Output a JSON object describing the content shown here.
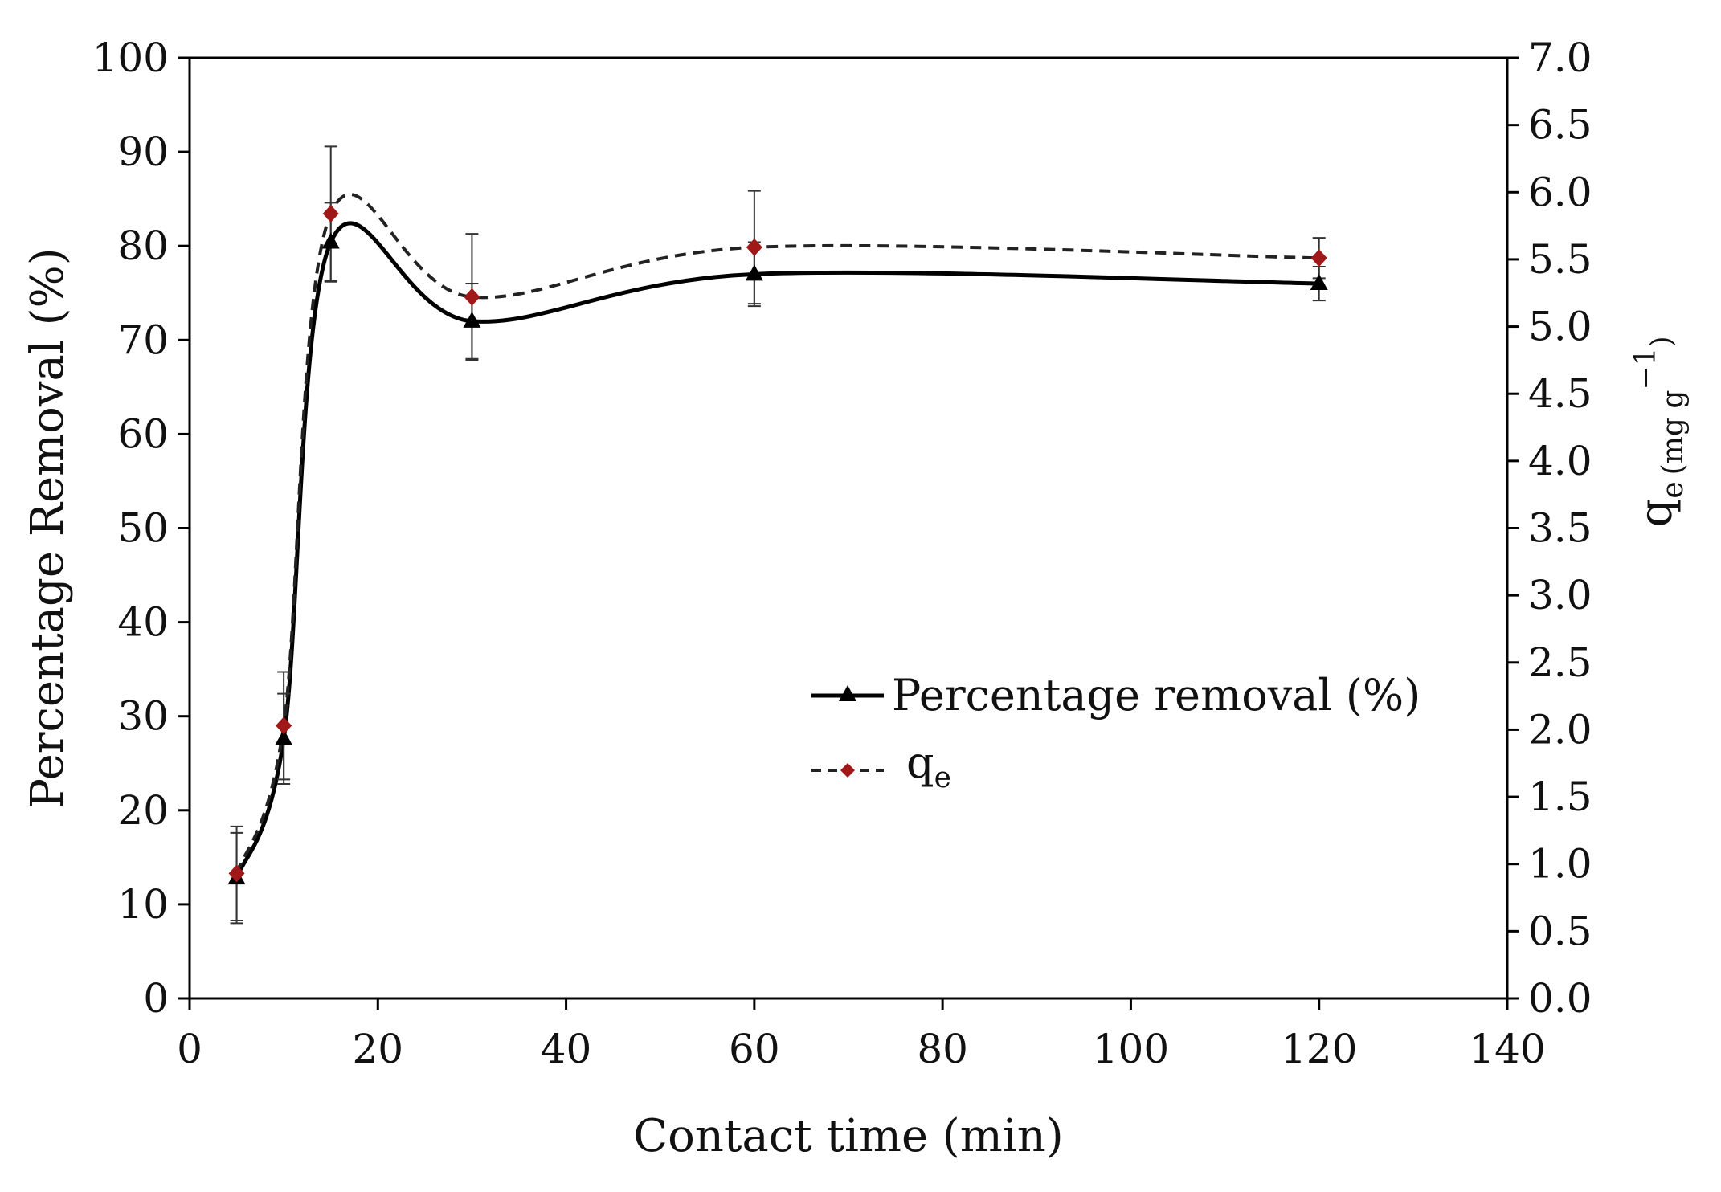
{
  "chart_data": {
    "type": "line",
    "title": "",
    "xlabel": "Contact time (min)",
    "ylabel": "Percentage  Removal  (%)",
    "y2label": {
      "main": "q",
      "sub": "e",
      "unit": "(mg g",
      "sup": "−1",
      "close": ")"
    },
    "xlim": [
      0,
      140
    ],
    "ylim": [
      0,
      100
    ],
    "y2lim": [
      0.0,
      7.0
    ],
    "xticks": [
      "0",
      "20",
      "40",
      "60",
      "80",
      "100",
      "120",
      "140"
    ],
    "yticks": [
      "0",
      "10",
      "20",
      "30",
      "40",
      "50",
      "60",
      "70",
      "80",
      "90",
      "100"
    ],
    "y2ticks": [
      "0.0",
      "0.5",
      "1.0",
      "1.5",
      "2.0",
      "2.5",
      "3.0",
      "3.5",
      "4.0",
      "4.5",
      "5.0",
      "5.5",
      "6.0",
      "6.5",
      "7.0"
    ],
    "legend_position": "center-right",
    "x": [
      5,
      10,
      15,
      30,
      60,
      120
    ],
    "series": [
      {
        "name": "Percentage removal (%)",
        "axis": "left",
        "line_style": "solid",
        "marker": "triangle",
        "color": "#000000",
        "values": [
          12.8,
          27.6,
          80.4,
          72.0,
          77.0,
          76.0
        ],
        "errors": [
          4.8,
          4.8,
          4.2,
          4.0,
          3.4,
          1.8
        ]
      },
      {
        "name": "q",
        "name_sub": "e",
        "axis": "right",
        "line_style": "dashed",
        "marker": "diamond",
        "color": "#a01818",
        "line_color": "#222222",
        "values": [
          0.93,
          2.03,
          5.84,
          5.22,
          5.59,
          5.51
        ],
        "errors": [
          0.35,
          0.4,
          0.5,
          0.47,
          0.42,
          0.15
        ]
      }
    ]
  }
}
